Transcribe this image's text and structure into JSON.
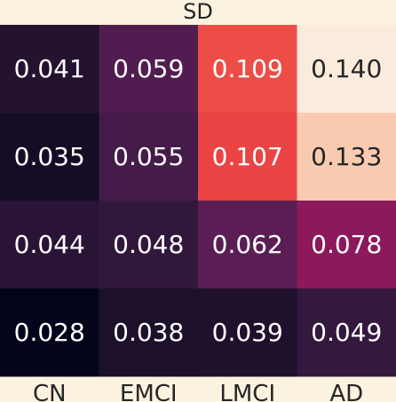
{
  "chart_data": {
    "type": "heatmap",
    "title": "SD",
    "xlabel": "",
    "ylabel": "",
    "x_categories": [
      "CN",
      "EMCI",
      "LMCI",
      "AD"
    ],
    "y_categories": [],
    "values": [
      [
        0.041,
        0.059,
        0.109,
        0.14
      ],
      [
        0.035,
        0.055,
        0.107,
        0.133
      ],
      [
        0.044,
        0.048,
        0.062,
        0.078
      ],
      [
        0.028,
        0.038,
        0.039,
        0.049
      ]
    ],
    "value_labels": [
      [
        "0.041",
        "0.059",
        "0.109",
        "0.140"
      ],
      [
        "0.035",
        "0.055",
        "0.107",
        "0.133"
      ],
      [
        "0.044",
        "0.048",
        "0.062",
        "0.078"
      ],
      [
        "0.028",
        "0.038",
        "0.039",
        "0.049"
      ]
    ],
    "colormap": "rocket",
    "vmin": 0.028,
    "vmax": 0.14,
    "grid": false,
    "legend": "none"
  }
}
